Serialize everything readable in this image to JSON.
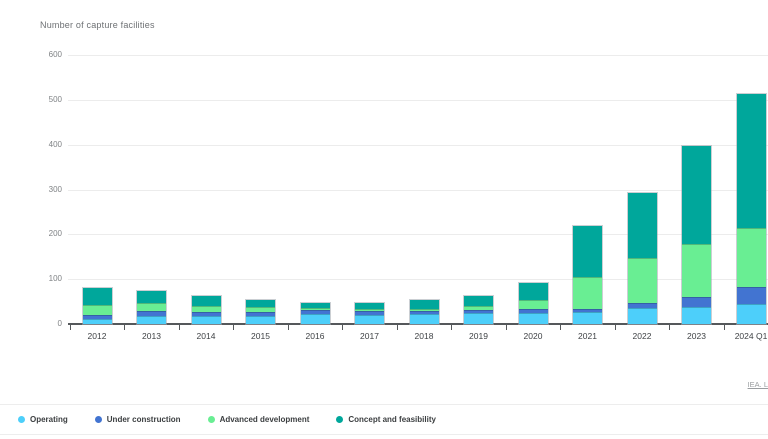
{
  "source": {
    "attribution": "IEA. L"
  },
  "chart_data": {
    "type": "bar",
    "stacked": true,
    "title": "Number of capture facilities",
    "xlabel": "",
    "ylabel": "Number of capture facilities",
    "ylim": [
      0,
      600
    ],
    "yticks": [
      0,
      100,
      200,
      300,
      400,
      500,
      600
    ],
    "grid": "horizontal",
    "legend_position": "bottom",
    "categories": [
      "2012",
      "2013",
      "2014",
      "2015",
      "2016",
      "2017",
      "2018",
      "2019",
      "2020",
      "2021",
      "2022",
      "2023",
      "2024 Q1"
    ],
    "series": [
      {
        "name": "Operating",
        "color": "#4DCFFA",
        "values": [
          11,
          18,
          17,
          17,
          22,
          21,
          22,
          24,
          24,
          26,
          35,
          38,
          45
        ]
      },
      {
        "name": "Under construction",
        "color": "#4274D1",
        "values": [
          9,
          10,
          10,
          9,
          9,
          8,
          7,
          7,
          9,
          8,
          11,
          22,
          37
        ]
      },
      {
        "name": "Advanced development",
        "color": "#69EE93",
        "values": [
          22,
          19,
          13,
          11,
          4,
          4,
          5,
          10,
          20,
          70,
          102,
          119,
          133
        ]
      },
      {
        "name": "Concept and feasibility",
        "color": "#00A79B",
        "values": [
          39,
          26,
          22,
          16,
          13,
          13,
          20,
          21,
          39,
          115,
          145,
          218,
          298
        ]
      }
    ],
    "totals": [
      81,
      73,
      62,
      53,
      48,
      46,
      54,
      62,
      92,
      219,
      293,
      397,
      513
    ]
  }
}
